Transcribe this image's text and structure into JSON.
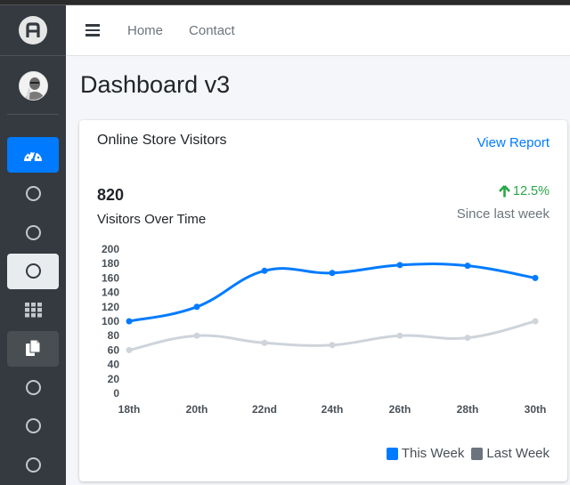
{
  "header": {
    "menu_icon": "hamburger-icon",
    "links": [
      {
        "label": "Home"
      },
      {
        "label": "Contact"
      }
    ]
  },
  "sidebar": {
    "brand_icon": "brand-logo-A",
    "avatar": "user-avatar",
    "items": [
      {
        "icon": "tachometer-icon",
        "state": "active"
      },
      {
        "icon": "circle-icon",
        "state": "default"
      },
      {
        "icon": "circle-icon",
        "state": "default"
      },
      {
        "icon": "circle-icon",
        "state": "selected-light"
      },
      {
        "icon": "grid-icon",
        "state": "default"
      },
      {
        "icon": "copy-icon",
        "state": "hover"
      },
      {
        "icon": "circle-icon",
        "state": "default"
      },
      {
        "icon": "circle-icon",
        "state": "default"
      },
      {
        "icon": "circle-icon",
        "state": "default"
      }
    ]
  },
  "page": {
    "title": "Dashboard v3"
  },
  "card": {
    "title": "Online Store Visitors",
    "link": "View Report",
    "total": "820",
    "total_label": "Visitors Over Time",
    "change": "12.5%",
    "change_label": "Since last week",
    "colors": {
      "this_week": "#007bff",
      "last_week": "#ced4da",
      "up": "#28a745",
      "legend_last_week": "#6c757d"
    }
  },
  "chart_data": {
    "type": "line",
    "title": "Visitors Over Time",
    "categories": [
      "18th",
      "20th",
      "22nd",
      "24th",
      "26th",
      "28th",
      "30th"
    ],
    "series": [
      {
        "name": "This Week",
        "values": [
          100,
          120,
          170,
          167,
          178,
          177,
          160
        ],
        "color": "#007bff"
      },
      {
        "name": "Last Week",
        "values": [
          60,
          80,
          70,
          67,
          80,
          77,
          100
        ],
        "color": "#ced4da"
      }
    ],
    "y_ticks": [
      "200",
      "180",
      "160",
      "140",
      "120",
      "100",
      "80",
      "60",
      "40",
      "20",
      "0"
    ],
    "ylim": [
      0,
      200
    ],
    "xlabel": "",
    "ylabel": "",
    "grid": false,
    "legend_position": "bottom-right",
    "legend": [
      "This Week",
      "Last Week"
    ]
  }
}
